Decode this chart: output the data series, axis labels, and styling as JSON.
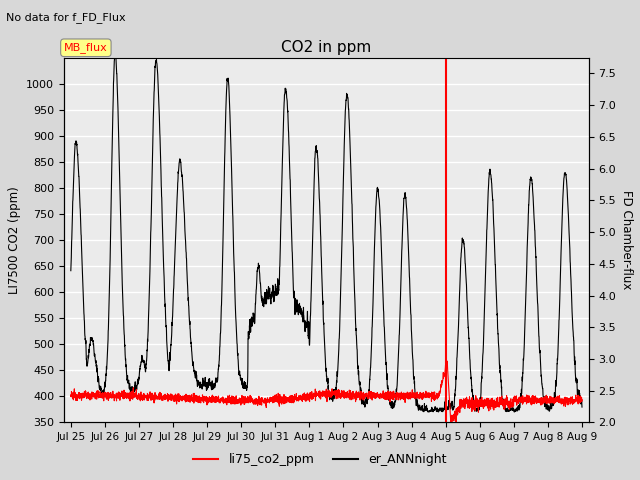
{
  "title": "CO2 in ppm",
  "suptitle": "No data for f_FD_Flux",
  "ylabel_left": "LI7500 CO2 (ppm)",
  "ylabel_right": "FD Chamber-flux",
  "ylim_left": [
    350,
    1050
  ],
  "ylim_right": [
    2.0,
    7.75
  ],
  "yticks_left": [
    350,
    400,
    450,
    500,
    550,
    600,
    650,
    700,
    750,
    800,
    850,
    900,
    950,
    1000
  ],
  "yticks_right": [
    2.0,
    2.5,
    3.0,
    3.5,
    4.0,
    4.5,
    5.0,
    5.5,
    6.0,
    6.5,
    7.0,
    7.5
  ],
  "bg_color": "#d8d8d8",
  "plot_bg_color": "#ebebeb",
  "legend_label1": "li75_co2_ppm",
  "legend_label2": "er_ANNnight",
  "legend_color1": "red",
  "legend_color2": "black",
  "mb_flux_box_color": "#ffff88",
  "mb_flux_text_color": "red",
  "red_vline_day": 11,
  "n_days": 16,
  "figsize": [
    6.4,
    4.8
  ],
  "dpi": 100
}
